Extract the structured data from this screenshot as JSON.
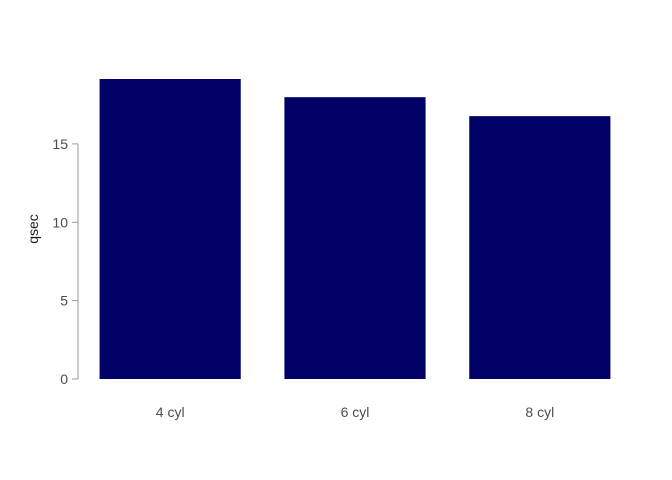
{
  "chart_data": {
    "type": "bar",
    "categories": [
      "4 cyl",
      "6 cyl",
      "8 cyl"
    ],
    "values": [
      19.14,
      17.98,
      16.77
    ],
    "xlabel": "",
    "ylabel": "qsec",
    "yticks": [
      0,
      5,
      10,
      15
    ],
    "ylim": [
      0,
      19.14
    ],
    "grid": false,
    "colors": {
      "bar": "#000066",
      "axis": "#999999"
    }
  }
}
